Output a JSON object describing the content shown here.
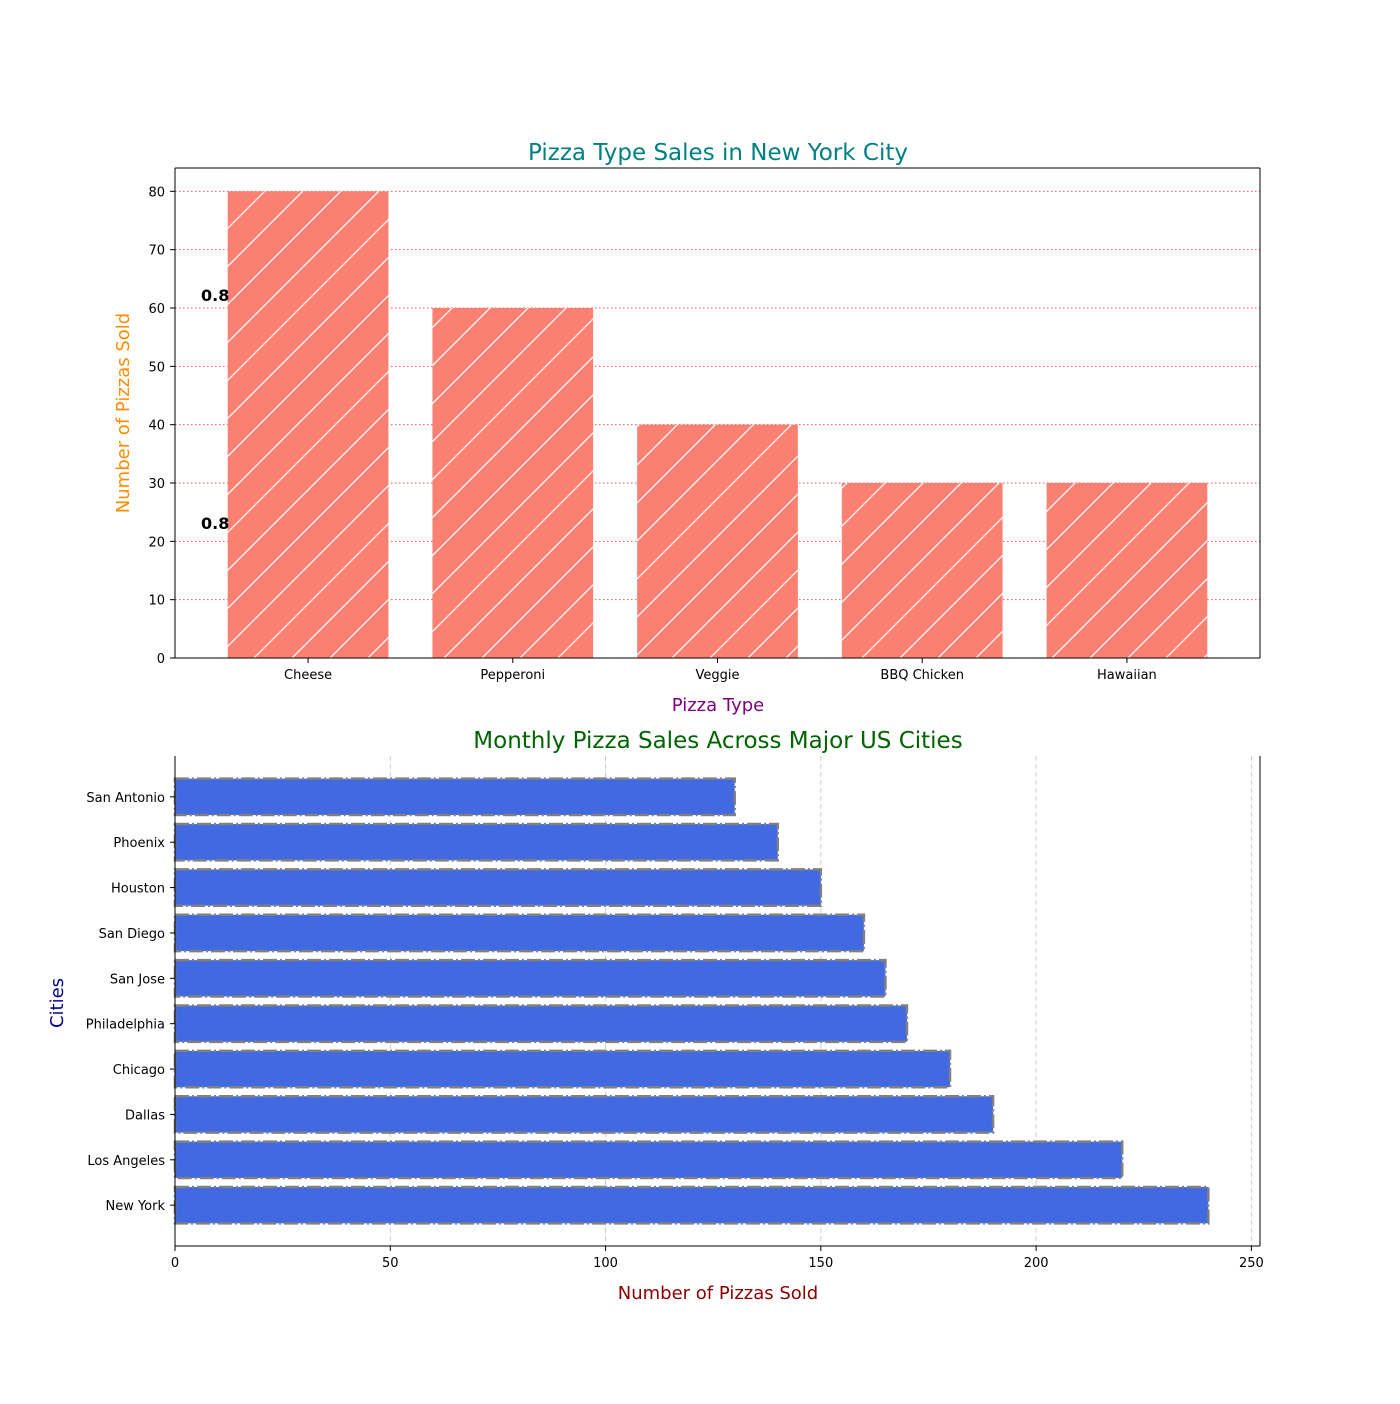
{
  "chart_data": [
    {
      "type": "bar",
      "title": "Pizza Type Sales in New York City",
      "xlabel": "Pizza Type",
      "ylabel": "Number of Pizzas Sold",
      "categories": [
        "Cheese",
        "Pepperoni",
        "Veggie",
        "BBQ Chicken",
        "Hawaiian"
      ],
      "values": [
        80,
        60,
        40,
        30,
        30
      ],
      "ylim": [
        0,
        84
      ],
      "yticks": [
        0,
        10,
        20,
        30,
        40,
        50,
        60,
        70,
        80
      ],
      "grid": "y",
      "annotations": [
        "0.8",
        "0.8"
      ],
      "colors": {
        "bar": "#fa8072",
        "title": "#008080",
        "xlabel": "#800080",
        "ylabel": "#ff8c00",
        "grid": "#ff0000"
      }
    },
    {
      "type": "bar",
      "orientation": "horizontal",
      "title": "Monthly Pizza Sales Across Major US Cities",
      "xlabel": "Number of Pizzas Sold",
      "ylabel": "Cities",
      "categories": [
        "New York",
        "Los Angeles",
        "Dallas",
        "Chicago",
        "Philadelphia",
        "San Jose",
        "San Diego",
        "Houston",
        "Phoenix",
        "San Antonio"
      ],
      "values": [
        240,
        220,
        190,
        180,
        170,
        165,
        160,
        150,
        140,
        130
      ],
      "xlim": [
        0,
        252
      ],
      "xticks": [
        0,
        50,
        100,
        150,
        200,
        250
      ],
      "grid": "x",
      "colors": {
        "bar": "#4169e1",
        "edge": "#808080",
        "title": "#006400",
        "xlabel": "#8b0000",
        "ylabel": "#00008b",
        "grid": "#cccccc"
      }
    }
  ]
}
